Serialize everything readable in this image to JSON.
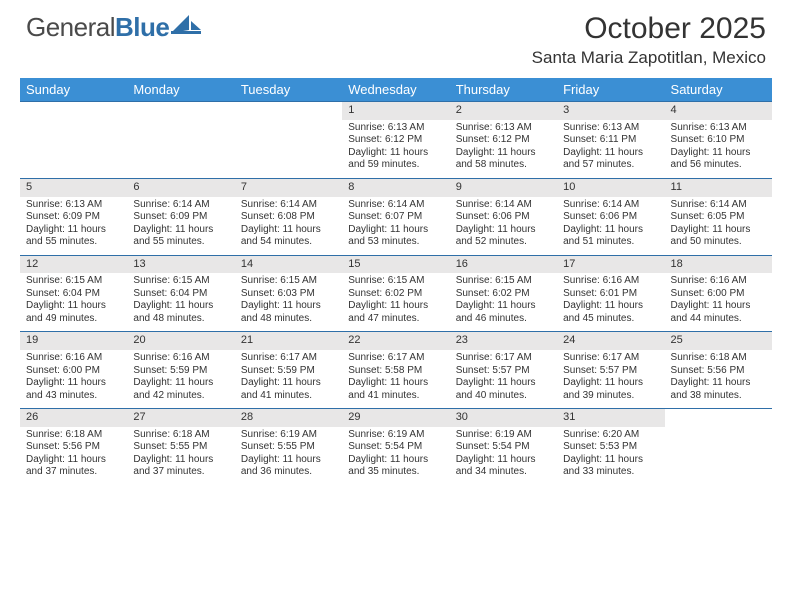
{
  "logo": {
    "part1": "General",
    "part2": "Blue"
  },
  "title": "October 2025",
  "location": "Santa Maria Zapotitlan, Mexico",
  "colors": {
    "headerBlue": "#3b8fd4",
    "borderBlue": "#2f6fa8",
    "dayBg": "#e8e7e7"
  },
  "weekdays": [
    "Sunday",
    "Monday",
    "Tuesday",
    "Wednesday",
    "Thursday",
    "Friday",
    "Saturday"
  ],
  "weeks": [
    [
      null,
      null,
      null,
      {
        "n": "1",
        "sr": "6:13 AM",
        "ss": "6:12 PM",
        "dh": "11",
        "dm": "59"
      },
      {
        "n": "2",
        "sr": "6:13 AM",
        "ss": "6:12 PM",
        "dh": "11",
        "dm": "58"
      },
      {
        "n": "3",
        "sr": "6:13 AM",
        "ss": "6:11 PM",
        "dh": "11",
        "dm": "57"
      },
      {
        "n": "4",
        "sr": "6:13 AM",
        "ss": "6:10 PM",
        "dh": "11",
        "dm": "56"
      }
    ],
    [
      {
        "n": "5",
        "sr": "6:13 AM",
        "ss": "6:09 PM",
        "dh": "11",
        "dm": "55"
      },
      {
        "n": "6",
        "sr": "6:14 AM",
        "ss": "6:09 PM",
        "dh": "11",
        "dm": "55"
      },
      {
        "n": "7",
        "sr": "6:14 AM",
        "ss": "6:08 PM",
        "dh": "11",
        "dm": "54"
      },
      {
        "n": "8",
        "sr": "6:14 AM",
        "ss": "6:07 PM",
        "dh": "11",
        "dm": "53"
      },
      {
        "n": "9",
        "sr": "6:14 AM",
        "ss": "6:06 PM",
        "dh": "11",
        "dm": "52"
      },
      {
        "n": "10",
        "sr": "6:14 AM",
        "ss": "6:06 PM",
        "dh": "11",
        "dm": "51"
      },
      {
        "n": "11",
        "sr": "6:14 AM",
        "ss": "6:05 PM",
        "dh": "11",
        "dm": "50"
      }
    ],
    [
      {
        "n": "12",
        "sr": "6:15 AM",
        "ss": "6:04 PM",
        "dh": "11",
        "dm": "49"
      },
      {
        "n": "13",
        "sr": "6:15 AM",
        "ss": "6:04 PM",
        "dh": "11",
        "dm": "48"
      },
      {
        "n": "14",
        "sr": "6:15 AM",
        "ss": "6:03 PM",
        "dh": "11",
        "dm": "48"
      },
      {
        "n": "15",
        "sr": "6:15 AM",
        "ss": "6:02 PM",
        "dh": "11",
        "dm": "47"
      },
      {
        "n": "16",
        "sr": "6:15 AM",
        "ss": "6:02 PM",
        "dh": "11",
        "dm": "46"
      },
      {
        "n": "17",
        "sr": "6:16 AM",
        "ss": "6:01 PM",
        "dh": "11",
        "dm": "45"
      },
      {
        "n": "18",
        "sr": "6:16 AM",
        "ss": "6:00 PM",
        "dh": "11",
        "dm": "44"
      }
    ],
    [
      {
        "n": "19",
        "sr": "6:16 AM",
        "ss": "6:00 PM",
        "dh": "11",
        "dm": "43"
      },
      {
        "n": "20",
        "sr": "6:16 AM",
        "ss": "5:59 PM",
        "dh": "11",
        "dm": "42"
      },
      {
        "n": "21",
        "sr": "6:17 AM",
        "ss": "5:59 PM",
        "dh": "11",
        "dm": "41"
      },
      {
        "n": "22",
        "sr": "6:17 AM",
        "ss": "5:58 PM",
        "dh": "11",
        "dm": "41"
      },
      {
        "n": "23",
        "sr": "6:17 AM",
        "ss": "5:57 PM",
        "dh": "11",
        "dm": "40"
      },
      {
        "n": "24",
        "sr": "6:17 AM",
        "ss": "5:57 PM",
        "dh": "11",
        "dm": "39"
      },
      {
        "n": "25",
        "sr": "6:18 AM",
        "ss": "5:56 PM",
        "dh": "11",
        "dm": "38"
      }
    ],
    [
      {
        "n": "26",
        "sr": "6:18 AM",
        "ss": "5:56 PM",
        "dh": "11",
        "dm": "37"
      },
      {
        "n": "27",
        "sr": "6:18 AM",
        "ss": "5:55 PM",
        "dh": "11",
        "dm": "37"
      },
      {
        "n": "28",
        "sr": "6:19 AM",
        "ss": "5:55 PM",
        "dh": "11",
        "dm": "36"
      },
      {
        "n": "29",
        "sr": "6:19 AM",
        "ss": "5:54 PM",
        "dh": "11",
        "dm": "35"
      },
      {
        "n": "30",
        "sr": "6:19 AM",
        "ss": "5:54 PM",
        "dh": "11",
        "dm": "34"
      },
      {
        "n": "31",
        "sr": "6:20 AM",
        "ss": "5:53 PM",
        "dh": "11",
        "dm": "33"
      },
      null
    ]
  ]
}
